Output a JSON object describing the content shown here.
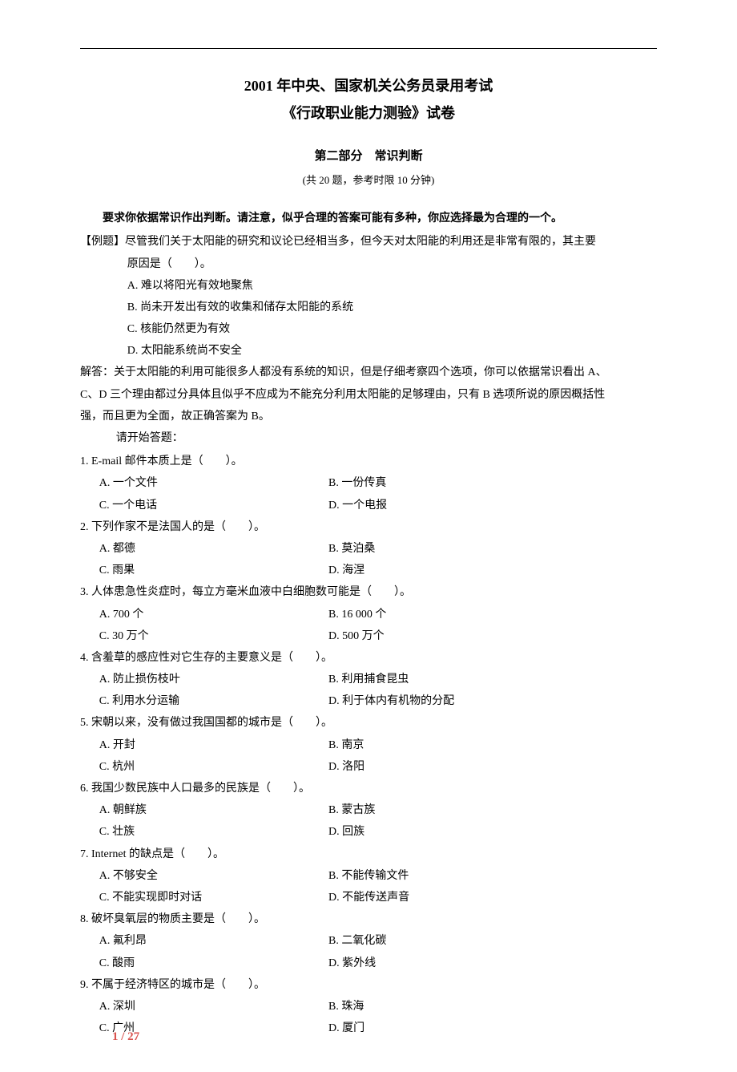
{
  "header": {
    "title1": "2001 年中央、国家机关公务员录用考试",
    "title2": "《行政职业能力测验》试卷"
  },
  "section": {
    "title": "第二部分　常识判断",
    "info": "(共 20 题，参考时限 10 分钟)"
  },
  "instruction": "要求你依据常识作出判断。请注意，似乎合理的答案可能有多种，你应选择最为合理的一个。",
  "example": {
    "intro": "【例题】尽管我们关于太阳能的研究和议论已经相当多，但今天对太阳能的利用还是非常有限的，其主要",
    "body": "原因是（　　）。",
    "opts": [
      "A. 难以将阳光有效地聚焦",
      "B. 尚未开发出有效的收集和储存太阳能的系统",
      "C. 核能仍然更为有效",
      "D. 太阳能系统尚不安全"
    ],
    "explain1": "解答：关于太阳能的利用可能很多人都没有系统的知识，但是仔细考察四个选项，你可以依据常识看出 A、",
    "explain2": "C、D 三个理由都过分具体且似乎不应成为不能充分利用太阳能的足够理由，只有 B 选项所说的原因概括性",
    "explain3": "强，而且更为全面，故正确答案为 B。"
  },
  "start": "请开始答题：",
  "questions": [
    {
      "text": "1. E-mail 邮件本质上是（　　）。",
      "rows": [
        {
          "a": "A. 一个文件",
          "b": "B. 一份传真"
        },
        {
          "a": "C. 一个电话",
          "b": "D. 一个电报"
        }
      ]
    },
    {
      "text": "2. 下列作家不是法国人的是（　　）。",
      "rows": [
        {
          "a": "A. 都德",
          "b": "B. 莫泊桑"
        },
        {
          "a": "C. 雨果",
          "b": "D. 海涅"
        }
      ]
    },
    {
      "text": "3. 人体患急性炎症时，每立方毫米血液中白细胞数可能是（　　）。",
      "rows": [
        {
          "a": "A. 700 个",
          "b": "B. 16 000 个"
        },
        {
          "a": "C. 30 万个",
          "b": "D. 500 万个"
        }
      ]
    },
    {
      "text": "4. 含羞草的感应性对它生存的主要意义是（　　）。",
      "rows": [
        {
          "a": "A. 防止损伤枝叶",
          "b": "B. 利用捕食昆虫"
        },
        {
          "a": "C. 利用水分运输",
          "b": "D. 利于体内有机物的分配"
        }
      ]
    },
    {
      "text": "5. 宋朝以来，没有做过我国国都的城市是（　　）。",
      "rows": [
        {
          "a": "A. 开封",
          "b": "B. 南京"
        },
        {
          "a": "C. 杭州",
          "b": "D. 洛阳"
        }
      ]
    },
    {
      "text": "6. 我国少数民族中人口最多的民族是（　　）。",
      "rows": [
        {
          "a": "A. 朝鲜族",
          "b": "B. 蒙古族"
        },
        {
          "a": "C. 壮族",
          "b": "D. 回族"
        }
      ]
    },
    {
      "text": "7. Internet 的缺点是（　　）。",
      "rows": [
        {
          "a": "A. 不够安全",
          "b": "B. 不能传输文件"
        },
        {
          "a": "C. 不能实现即时对话",
          "b": "D. 不能传送声音"
        }
      ]
    },
    {
      "text": "8. 破坏臭氧层的物质主要是（　　）。",
      "rows": [
        {
          "a": "A. 氟利昂",
          "b": "B. 二氧化碳"
        },
        {
          "a": "C. 酸雨",
          "b": "D. 紫外线"
        }
      ]
    },
    {
      "text": "9. 不属于经济特区的城市是（　　）。",
      "rows": [
        {
          "a": "A. 深圳",
          "b": "B. 珠海"
        },
        {
          "a": "C. 广州",
          "b": "D. 厦门"
        }
      ]
    }
  ],
  "pageNumber": {
    "current": "1",
    "sep": " / ",
    "total": "27"
  }
}
